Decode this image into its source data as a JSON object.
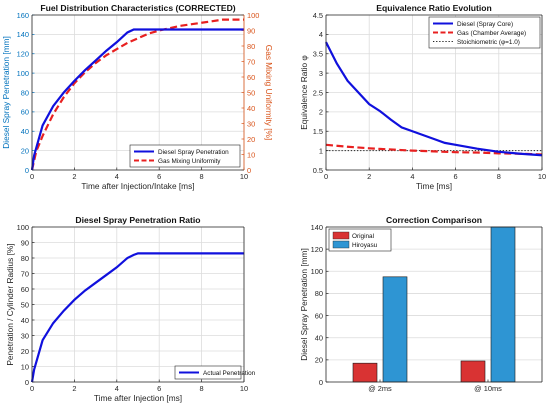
{
  "colors": {
    "diesel": "#1010dd",
    "gas_red": "#e82020",
    "axis": "#262626",
    "grid": "#dcdcdc",
    "left_axis_blue": "#0072bd",
    "right_axis_orange": "#d95319",
    "bar_original": "#d93333",
    "bar_hiroyasu": "#2e95d3"
  },
  "chart_data": [
    {
      "type": "line",
      "title": "Fuel Distribution Characteristics (CORRECTED)",
      "xlabel": "Time after Injection/Intake [ms]",
      "ylabel": "Diesel Spray Penetration [mm]",
      "y2label": "Gas Mixing Uniformity [%]",
      "xlim": [
        0,
        10
      ],
      "ylim": [
        0,
        160
      ],
      "y2lim": [
        0,
        100
      ],
      "xticks": [
        "0",
        "2",
        "4",
        "6",
        "8",
        "10"
      ],
      "yticks": [
        "0",
        "20",
        "40",
        "60",
        "80",
        "100",
        "120",
        "140",
        "160"
      ],
      "y2ticks": [
        "0",
        "10",
        "20",
        "30",
        "40",
        "50",
        "60",
        "70",
        "80",
        "90",
        "100"
      ],
      "grid": true,
      "legend_position": "bottom-right",
      "series": [
        {
          "name": "Diesel Spray Penetration",
          "axis": "left",
          "style": "solid",
          "x": [
            0,
            0.1,
            0.5,
            1,
            1.5,
            2,
            2.5,
            3,
            3.5,
            4,
            4.5,
            4.8,
            5,
            6,
            7,
            8,
            9,
            10
          ],
          "y": [
            0,
            15,
            46,
            66,
            80,
            92,
            103,
            113,
            123,
            132,
            142,
            145,
            145,
            145,
            145,
            145,
            145,
            145
          ]
        },
        {
          "name": "Gas Mixing Uniformity",
          "axis": "right",
          "style": "dashed",
          "x": [
            0,
            0.2,
            0.5,
            1,
            1.5,
            2,
            2.5,
            3,
            3.5,
            4,
            4.5,
            5,
            5.5,
            6,
            7,
            8,
            9,
            10
          ],
          "y": [
            0,
            12,
            22,
            36,
            47,
            56,
            63,
            69,
            74,
            78,
            82,
            85,
            88,
            90,
            93,
            95,
            97,
            97
          ]
        }
      ]
    },
    {
      "type": "line",
      "title": "Equivalence Ratio Evolution",
      "xlabel": "Time [ms]",
      "ylabel": "Equivalence Ratio φ",
      "xlim": [
        0,
        10
      ],
      "ylim": [
        0.5,
        4.5
      ],
      "xticks": [
        "0",
        "2",
        "4",
        "6",
        "8",
        "10"
      ],
      "yticks": [
        "0.5",
        "1",
        "1.5",
        "2",
        "2.5",
        "3",
        "3.5",
        "4",
        "4.5"
      ],
      "grid": true,
      "legend_position": "top-right",
      "series": [
        {
          "name": "Diesel (Spray Core)",
          "style": "solid",
          "x": [
            0,
            0.5,
            1,
            1.5,
            2,
            2.5,
            3,
            3.5,
            4,
            4.5,
            5,
            5.5,
            6,
            7,
            8,
            9,
            10
          ],
          "y": [
            3.8,
            3.25,
            2.8,
            2.5,
            2.2,
            2.02,
            1.8,
            1.6,
            1.5,
            1.4,
            1.3,
            1.2,
            1.15,
            1.05,
            0.97,
            0.92,
            0.88
          ]
        },
        {
          "name": "Gas (Chamber Average)",
          "style": "dashed",
          "x": [
            0,
            1,
            2,
            3,
            4,
            5,
            6,
            7,
            8,
            9,
            10
          ],
          "y": [
            1.15,
            1.1,
            1.06,
            1.03,
            1.0,
            0.98,
            0.96,
            0.95,
            0.93,
            0.92,
            0.9
          ]
        },
        {
          "name": "Stoichiometric (φ=1.0)",
          "style": "dotted",
          "x": [
            0,
            10
          ],
          "y": [
            1.0,
            1.0
          ]
        }
      ]
    },
    {
      "type": "line",
      "title": "Diesel Spray Penetration Ratio",
      "xlabel": "Time after Injection [ms]",
      "ylabel": "Penetration / Cylinder Radius [%]",
      "xlim": [
        0,
        10
      ],
      "ylim": [
        0,
        100
      ],
      "xticks": [
        "0",
        "2",
        "4",
        "6",
        "8",
        "10"
      ],
      "yticks": [
        "0",
        "10",
        "20",
        "30",
        "40",
        "50",
        "60",
        "70",
        "80",
        "90",
        "100"
      ],
      "grid": true,
      "legend_position": "bottom-right",
      "series": [
        {
          "name": "Actual Penetration",
          "style": "solid",
          "x": [
            0,
            0.1,
            0.5,
            1,
            1.5,
            2,
            2.5,
            3,
            3.5,
            4,
            4.5,
            4.8,
            5,
            6,
            7,
            8,
            9,
            10
          ],
          "y": [
            0,
            8,
            27,
            38,
            46,
            53,
            59,
            64,
            69,
            74,
            80,
            82,
            83,
            83,
            83,
            83,
            83,
            83
          ]
        }
      ]
    },
    {
      "type": "bar",
      "title": "Correction Comparison",
      "xlabel": "",
      "ylabel": "Diesel Spray Penetration [mm]",
      "ylim": [
        0,
        140
      ],
      "yticks": [
        "0",
        "20",
        "40",
        "60",
        "80",
        "100",
        "120",
        "140"
      ],
      "categories": [
        "@ 2ms",
        "@ 10ms"
      ],
      "grid": true,
      "legend_position": "top-left",
      "series": [
        {
          "name": "Original",
          "values": [
            17,
            19
          ]
        },
        {
          "name": "Hiroyasu",
          "values": [
            95,
            140
          ]
        }
      ]
    }
  ]
}
